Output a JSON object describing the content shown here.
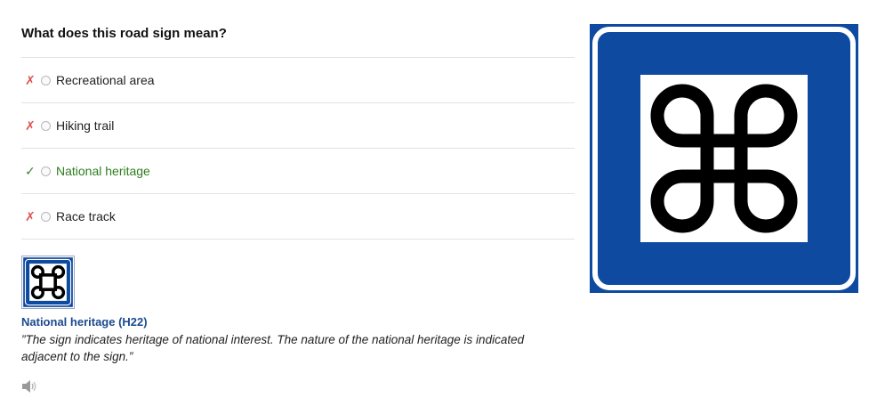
{
  "question": "What does this road sign mean?",
  "options": [
    {
      "mark": "✗",
      "label": "Recreational area",
      "correct": false
    },
    {
      "mark": "✗",
      "label": "Hiking trail",
      "correct": false
    },
    {
      "mark": "✓",
      "label": "National heritage",
      "correct": true
    },
    {
      "mark": "✗",
      "label": "Race track",
      "correct": false
    }
  ],
  "answer": {
    "title": "National heritage (H22)",
    "description": "”The sign indicates heritage of national interest. The nature of the national heritage is indicated adjacent to the sign.”"
  },
  "icons": {
    "sign": "national-heritage-sign-icon",
    "audio": "speaker-icon"
  },
  "colors": {
    "sign_blue": "#0e4aa0",
    "correct_green": "#2e7d1f",
    "wrong_red": "#e05050",
    "answer_title": "#1b4a8e"
  }
}
